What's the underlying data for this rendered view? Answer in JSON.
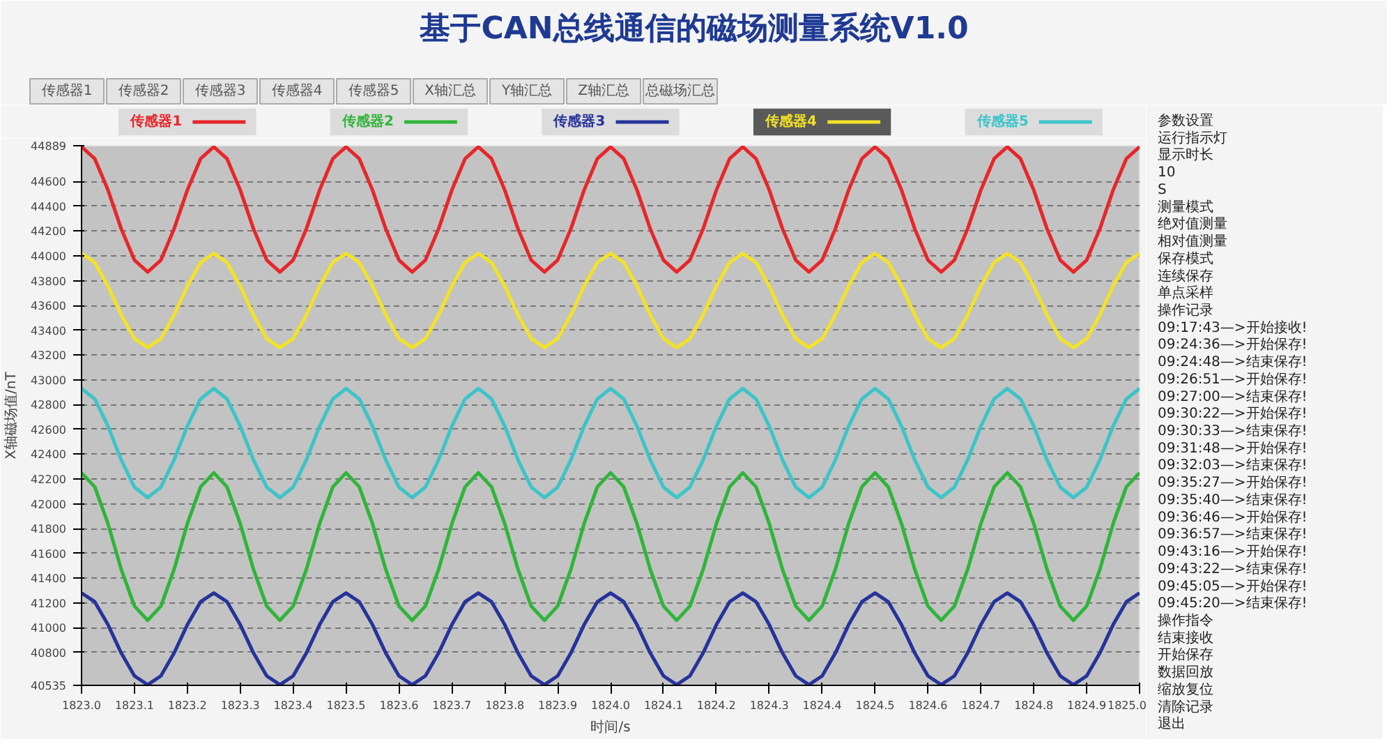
{
  "chart_data": [
    {
      "type": "other",
      "title": "基于CAN总线通信的磁场测量系统V1.0",
      "annotations": [
        "传感器1",
        "传感器2",
        "传感器3",
        "传感器4",
        "传感器5",
        "X轴汇总",
        "Y轴汇总",
        "Z轴汇总",
        "总磁场汇总"
      ]
    },
    {
      "type": "line",
      "xlabel": "时间/s",
      "ylabel": "X轴磁场值/nT",
      "legend": "top",
      "grid": "y",
      "x": [
        1823,
        1823.025,
        1823.05,
        1823.075,
        1823.1,
        1823.125,
        1823.15,
        1823.175,
        1823.2,
        1823.225,
        1823.25,
        1823.275,
        1823.3,
        1823.325,
        1823.35,
        1823.375,
        1823.4,
        1823.425,
        1823.45,
        1823.475,
        1823.5,
        1823.525,
        1823.55,
        1823.575,
        1823.6,
        1823.625,
        1823.65,
        1823.675,
        1823.7,
        1823.725,
        1823.75,
        1823.775,
        1823.8,
        1823.825,
        1823.85,
        1823.875,
        1823.9,
        1823.925,
        1823.95,
        1823.975,
        1824,
        1824.025,
        1824.05,
        1824.075,
        1824.1,
        1824.125,
        1824.15,
        1824.175,
        1824.2,
        1824.225,
        1824.25,
        1824.275,
        1824.3,
        1824.325,
        1824.35,
        1824.375,
        1824.4,
        1824.425,
        1824.45,
        1824.475,
        1824.5,
        1824.525,
        1824.55,
        1824.575,
        1824.6,
        1824.625,
        1824.65,
        1824.675,
        1824.7,
        1824.725,
        1824.75,
        1824.775,
        1824.8,
        1824.825,
        1824.85,
        1824.875,
        1824.9,
        1824.925,
        1824.95,
        1824.975,
        1825
      ],
      "series": [
        {
          "name": "传感器1",
          "color": "#e8262a",
          "values": [
            44880,
            44784,
            44531,
            44219,
            43966,
            43870,
            43966,
            44219,
            44531,
            44784,
            44880,
            44784,
            44531,
            44219,
            43966,
            43870,
            43966,
            44219,
            44531,
            44784,
            44880,
            44784,
            44531,
            44219,
            43966,
            43870,
            43966,
            44219,
            44531,
            44784,
            44880,
            44784,
            44531,
            44219,
            43966,
            43870,
            43966,
            44219,
            44531,
            44784,
            44880,
            44784,
            44531,
            44219,
            43966,
            43870,
            43966,
            44219,
            44531,
            44784,
            44880,
            44784,
            44531,
            44219,
            43966,
            43870,
            43966,
            44219,
            44531,
            44784,
            44880,
            44784,
            44531,
            44219,
            43966,
            43870,
            43966,
            44219,
            44531,
            44784,
            44880,
            44784,
            44531,
            44219,
            43966,
            43870,
            43966,
            44219,
            44531,
            44784,
            44880
          ]
        },
        {
          "name": "传感器2",
          "color": "#2fb53a",
          "values": [
            42250,
            42136,
            41839,
            41471,
            41174,
            41060,
            41174,
            41471,
            41839,
            42136,
            42250,
            42136,
            41839,
            41471,
            41174,
            41060,
            41174,
            41471,
            41839,
            42136,
            42250,
            42136,
            41839,
            41471,
            41174,
            41060,
            41174,
            41471,
            41839,
            42136,
            42250,
            42136,
            41839,
            41471,
            41174,
            41060,
            41174,
            41471,
            41839,
            42136,
            42250,
            42136,
            41839,
            41471,
            41174,
            41060,
            41174,
            41471,
            41839,
            42136,
            42250,
            42136,
            41839,
            41471,
            41174,
            41060,
            41174,
            41471,
            41839,
            42136,
            42250,
            42136,
            41839,
            41471,
            41174,
            41060,
            41174,
            41471,
            41839,
            42136,
            42250,
            42136,
            41839,
            41471,
            41174,
            41060,
            41174,
            41471,
            41839,
            42136,
            42250
          ]
        },
        {
          "name": "传感器3",
          "color": "#27339a",
          "values": [
            41280,
            41209,
            41024,
            40796,
            40611,
            40540,
            40611,
            40796,
            41024,
            41209,
            41280,
            41209,
            41024,
            40796,
            40611,
            40540,
            40611,
            40796,
            41024,
            41209,
            41280,
            41209,
            41024,
            40796,
            40611,
            40540,
            40611,
            40796,
            41024,
            41209,
            41280,
            41209,
            41024,
            40796,
            40611,
            40540,
            40611,
            40796,
            41024,
            41209,
            41280,
            41209,
            41024,
            40796,
            40611,
            40540,
            40611,
            40796,
            41024,
            41209,
            41280,
            41209,
            41024,
            40796,
            40611,
            40540,
            40611,
            40796,
            41024,
            41209,
            41280,
            41209,
            41024,
            40796,
            40611,
            40540,
            40611,
            40796,
            41024,
            41209,
            41280,
            41209,
            41024,
            40796,
            40611,
            40540,
            40611,
            40796,
            41024,
            41209,
            41280
          ]
        },
        {
          "name": "传感器4",
          "color": "#f2e228",
          "values": [
            44020,
            43947,
            43757,
            43523,
            43333,
            43260,
            43333,
            43523,
            43757,
            43947,
            44020,
            43947,
            43757,
            43523,
            43333,
            43260,
            43333,
            43523,
            43757,
            43947,
            44020,
            43947,
            43757,
            43523,
            43333,
            43260,
            43333,
            43523,
            43757,
            43947,
            44020,
            43947,
            43757,
            43523,
            43333,
            43260,
            43333,
            43523,
            43757,
            43947,
            44020,
            43947,
            43757,
            43523,
            43333,
            43260,
            43333,
            43523,
            43757,
            43947,
            44020,
            43947,
            43757,
            43523,
            43333,
            43260,
            43333,
            43523,
            43757,
            43947,
            44020,
            43947,
            43757,
            43523,
            43333,
            43260,
            43333,
            43523,
            43757,
            43947,
            44020,
            43947,
            43757,
            43523,
            43333,
            43260,
            43333,
            43523,
            43757,
            43947,
            44020
          ]
        },
        {
          "name": "传感器5",
          "color": "#3cc4c8",
          "values": [
            42930,
            42846,
            42626,
            42354,
            42134,
            42050,
            42134,
            42354,
            42626,
            42846,
            42930,
            42846,
            42626,
            42354,
            42134,
            42050,
            42134,
            42354,
            42626,
            42846,
            42930,
            42846,
            42626,
            42354,
            42134,
            42050,
            42134,
            42354,
            42626,
            42846,
            42930,
            42846,
            42626,
            42354,
            42134,
            42050,
            42134,
            42354,
            42626,
            42846,
            42930,
            42846,
            42626,
            42354,
            42134,
            42050,
            42134,
            42354,
            42626,
            42846,
            42930,
            42846,
            42626,
            42354,
            42134,
            42050,
            42134,
            42354,
            42626,
            42846,
            42930,
            42846,
            42626,
            42354,
            42134,
            42050,
            42134,
            42354,
            42626,
            42846,
            42930,
            42846,
            42626,
            42354,
            42134,
            42050,
            42134,
            42354,
            42626,
            42846,
            42930
          ]
        }
      ],
      "xlim": [
        1823.0,
        1825.0
      ],
      "ylim": [
        40535,
        44889
      ],
      "xticks": [
        {
          "value": 1823.0,
          "label": "1823.0"
        },
        {
          "value": 1823.1,
          "label": "1823.1"
        },
        {
          "value": 1823.2,
          "label": "1823.2"
        },
        {
          "value": 1823.3,
          "label": "1823.3"
        },
        {
          "value": 1823.4,
          "label": "1823.4"
        },
        {
          "value": 1823.5,
          "label": "1823.5"
        },
        {
          "value": 1823.6,
          "label": "1823.6"
        },
        {
          "value": 1823.7,
          "label": "1823.7"
        },
        {
          "value": 1823.8,
          "label": "1823.8"
        },
        {
          "value": 1823.9,
          "label": "1823.9"
        },
        {
          "value": 1824.0,
          "label": "1824.0"
        },
        {
          "value": 1824.1,
          "label": "1824.1"
        },
        {
          "value": 1824.2,
          "label": "1824.2"
        },
        {
          "value": 1824.3,
          "label": "1824.3"
        },
        {
          "value": 1824.4,
          "label": "1824.4"
        },
        {
          "value": 1824.5,
          "label": "1824.5"
        },
        {
          "value": 1824.6,
          "label": "1824.6"
        },
        {
          "value": 1824.7,
          "label": "1824.7"
        },
        {
          "value": 1824.8,
          "label": "1824.8"
        },
        {
          "value": 1824.9,
          "label": "1824.9"
        },
        {
          "value": 1825.0,
          "label": "1825.0"
        }
      ],
      "yticks": [
        40535,
        40800,
        41000,
        41200,
        41400,
        41600,
        41800,
        42000,
        42200,
        42400,
        42600,
        42800,
        43000,
        43200,
        43400,
        43600,
        43800,
        44000,
        44200,
        44400,
        44600,
        44889
      ]
    },
    {
      "type": "other",
      "annotations": [
        "参数设置",
        "运行指示灯",
        "显示时长",
        "10",
        "S",
        "测量模式",
        "绝对值测量",
        "相对值测量",
        "保存模式",
        "连续保存",
        "单点采样",
        "操作记录",
        "09:17:43—>开始接收!",
        "09:24:36—>开始保存!",
        "09:24:48—>结束保存!",
        "09:26:51—>开始保存!",
        "09:27:00—>结束保存!",
        "09:30:22—>开始保存!",
        "09:30:33—>结束保存!",
        "09:31:48—>开始保存!",
        "09:32:03—>结束保存!",
        "09:35:27—>开始保存!",
        "09:35:40—>结束保存!",
        "09:36:46—>开始保存!",
        "09:36:57—>结束保存!",
        "09:43:16—>开始保存!",
        "09:43:22—>结束保存!",
        "09:45:05—>开始保存!",
        "09:45:20—>结束保存!",
        "操作指令",
        "结束接收",
        "开始保存",
        "数据回放",
        "缩放复位",
        "清除记录",
        "退出"
      ]
    }
  ]
}
